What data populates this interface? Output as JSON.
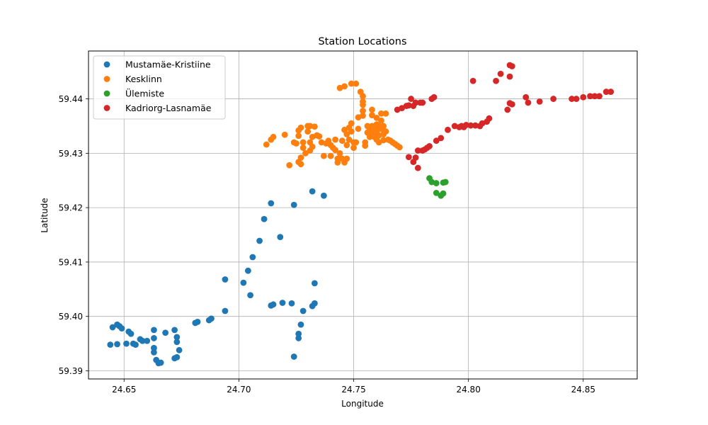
{
  "chart_data": {
    "type": "scatter",
    "title": "Station Locations",
    "xlabel": "Longitude",
    "ylabel": "Latitude",
    "xlim": [
      24.6345,
      24.8735
    ],
    "ylim": [
      59.3885,
      59.4488
    ],
    "xticks": [
      24.65,
      24.7,
      24.75,
      24.8,
      24.85
    ],
    "xtick_labels": [
      "24.65",
      "24.70",
      "24.75",
      "24.80",
      "24.85"
    ],
    "yticks": [
      59.39,
      59.4,
      59.41,
      59.42,
      59.43,
      59.44
    ],
    "ytick_labels": [
      "59.39",
      "59.40",
      "59.41",
      "59.42",
      "59.43",
      "59.44"
    ],
    "grid": true,
    "legend_position": "top-left",
    "series": [
      {
        "name": "Mustamäe-Kristiine",
        "color": "#1f77b4",
        "points": [
          [
            24.644,
            59.3948
          ],
          [
            24.645,
            59.398
          ],
          [
            24.647,
            59.3985
          ],
          [
            24.648,
            59.3982
          ],
          [
            24.649,
            59.3978
          ],
          [
            24.647,
            59.3949
          ],
          [
            24.651,
            59.395
          ],
          [
            24.652,
            59.3972
          ],
          [
            24.653,
            59.3968
          ],
          [
            24.654,
            59.395
          ],
          [
            24.655,
            59.3948
          ],
          [
            24.657,
            59.3958
          ],
          [
            24.658,
            59.3955
          ],
          [
            24.66,
            59.3955
          ],
          [
            24.663,
            59.3975
          ],
          [
            24.663,
            59.396
          ],
          [
            24.663,
            59.3942
          ],
          [
            24.663,
            59.3934
          ],
          [
            24.664,
            59.392
          ],
          [
            24.665,
            59.3914
          ],
          [
            24.666,
            59.3915
          ],
          [
            24.668,
            59.397
          ],
          [
            24.672,
            59.3975
          ],
          [
            24.672,
            59.3923
          ],
          [
            24.673,
            59.3925
          ],
          [
            24.673,
            59.3962
          ],
          [
            24.673,
            59.3953
          ],
          [
            24.674,
            59.3938
          ],
          [
            24.681,
            59.3988
          ],
          [
            24.682,
            59.399
          ],
          [
            24.687,
            59.3993
          ],
          [
            24.688,
            59.3996
          ],
          [
            24.694,
            59.4068
          ],
          [
            24.694,
            59.401
          ],
          [
            24.702,
            59.4062
          ],
          [
            24.704,
            59.4084
          ],
          [
            24.705,
            59.4039
          ],
          [
            24.706,
            59.4109
          ],
          [
            24.709,
            59.4139
          ],
          [
            24.711,
            59.4179
          ],
          [
            24.714,
            59.4208
          ],
          [
            24.714,
            59.402
          ],
          [
            24.715,
            59.4022
          ],
          [
            24.718,
            59.4146
          ],
          [
            24.719,
            59.4025
          ],
          [
            24.723,
            59.4024
          ],
          [
            24.724,
            59.4205
          ],
          [
            24.724,
            59.3926
          ],
          [
            24.726,
            59.396
          ],
          [
            24.726,
            59.3968
          ],
          [
            24.727,
            59.3985
          ],
          [
            24.728,
            59.401
          ],
          [
            24.732,
            59.423
          ],
          [
            24.732,
            59.4019
          ],
          [
            24.733,
            59.4024
          ],
          [
            24.733,
            59.4061
          ],
          [
            24.737,
            59.4222
          ]
        ]
      },
      {
        "name": "Kesklinn",
        "color": "#ff7f0e",
        "points": [
          [
            24.712,
            59.4316
          ],
          [
            24.714,
            59.4325
          ],
          [
            24.715,
            59.433
          ],
          [
            24.72,
            59.4334
          ],
          [
            24.722,
            59.4278
          ],
          [
            24.724,
            59.432
          ],
          [
            24.725,
            59.4318
          ],
          [
            24.726,
            59.4342
          ],
          [
            24.726,
            59.4332
          ],
          [
            24.726,
            59.4284
          ],
          [
            24.727,
            59.4347
          ],
          [
            24.727,
            59.4292
          ],
          [
            24.727,
            59.428
          ],
          [
            24.728,
            59.432
          ],
          [
            24.728,
            59.431
          ],
          [
            24.729,
            59.43
          ],
          [
            24.73,
            59.435
          ],
          [
            24.73,
            59.434
          ],
          [
            24.731,
            59.435
          ],
          [
            24.731,
            59.432
          ],
          [
            24.731,
            59.4305
          ],
          [
            24.732,
            59.433
          ],
          [
            24.732,
            59.4312
          ],
          [
            24.733,
            59.4349
          ],
          [
            24.734,
            59.4333
          ],
          [
            24.735,
            59.4331
          ],
          [
            24.736,
            59.432
          ],
          [
            24.737,
            59.4295
          ],
          [
            24.738,
            59.4318
          ],
          [
            24.739,
            59.4323
          ],
          [
            24.74,
            59.4315
          ],
          [
            24.74,
            59.4295
          ],
          [
            24.741,
            59.431
          ],
          [
            24.742,
            59.4325
          ],
          [
            24.742,
            59.4306
          ],
          [
            24.743,
            59.429
          ],
          [
            24.743,
            59.4283
          ],
          [
            24.744,
            59.442
          ],
          [
            24.744,
            59.43
          ],
          [
            24.745,
            59.4323
          ],
          [
            24.745,
            59.429
          ],
          [
            24.746,
            59.4343
          ],
          [
            24.746,
            59.4283
          ],
          [
            24.746,
            59.4423
          ],
          [
            24.747,
            59.4335
          ],
          [
            24.747,
            59.4315
          ],
          [
            24.747,
            59.429
          ],
          [
            24.748,
            59.4347
          ],
          [
            24.748,
            59.4325
          ],
          [
            24.749,
            59.4355
          ],
          [
            24.749,
            59.434
          ],
          [
            24.749,
            59.4428
          ],
          [
            24.75,
            59.432
          ],
          [
            24.75,
            59.431
          ],
          [
            24.751,
            59.4428
          ],
          [
            24.751,
            59.432
          ],
          [
            24.752,
            59.4345
          ],
          [
            24.752,
            59.4366
          ],
          [
            24.753,
            59.4413
          ],
          [
            24.754,
            59.4405
          ],
          [
            24.754,
            59.4395
          ],
          [
            24.754,
            59.4389
          ],
          [
            24.754,
            59.4378
          ],
          [
            24.754,
            59.4369
          ],
          [
            24.755,
            59.432
          ],
          [
            24.755,
            59.4314
          ],
          [
            24.756,
            59.435
          ],
          [
            24.756,
            59.4338
          ],
          [
            24.757,
            59.4345
          ],
          [
            24.757,
            59.433
          ],
          [
            24.758,
            59.437
          ],
          [
            24.758,
            59.438
          ],
          [
            24.758,
            59.435
          ],
          [
            24.758,
            59.4335
          ],
          [
            24.759,
            59.4343
          ],
          [
            24.759,
            59.433
          ],
          [
            24.76,
            59.4365
          ],
          [
            24.76,
            59.4353
          ],
          [
            24.76,
            59.434
          ],
          [
            24.76,
            59.4325
          ],
          [
            24.761,
            59.435
          ],
          [
            24.761,
            59.4333
          ],
          [
            24.761,
            59.432
          ],
          [
            24.762,
            59.4373
          ],
          [
            24.762,
            59.436
          ],
          [
            24.762,
            59.4345
          ],
          [
            24.763,
            59.4335
          ],
          [
            24.763,
            59.435
          ],
          [
            24.763,
            59.4324
          ],
          [
            24.764,
            59.4373
          ],
          [
            24.764,
            59.434
          ],
          [
            24.765,
            59.4325
          ],
          [
            24.766,
            59.4323
          ],
          [
            24.767,
            59.432
          ],
          [
            24.768,
            59.4317
          ],
          [
            24.769,
            59.4314
          ],
          [
            24.77,
            59.4311
          ]
        ]
      },
      {
        "name": "Ülemiste",
        "color": "#2ca02c",
        "points": [
          [
            24.783,
            59.4254
          ],
          [
            24.784,
            59.4247
          ],
          [
            24.786,
            59.4245
          ],
          [
            24.786,
            59.4227
          ],
          [
            24.788,
            59.4222
          ],
          [
            24.789,
            59.4226
          ],
          [
            24.789,
            59.4246
          ],
          [
            24.79,
            59.4247
          ]
        ]
      },
      {
        "name": "Kadriorg-Lasnamäe",
        "color": "#d62728",
        "points": [
          [
            24.769,
            59.438
          ],
          [
            24.771,
            59.4383
          ],
          [
            24.773,
            59.4387
          ],
          [
            24.774,
            59.4388
          ],
          [
            24.775,
            59.44
          ],
          [
            24.776,
            59.4387
          ],
          [
            24.777,
            59.4393
          ],
          [
            24.779,
            59.4393
          ],
          [
            24.78,
            59.4393
          ],
          [
            24.784,
            59.44
          ],
          [
            24.785,
            59.4403
          ],
          [
            24.774,
            59.4293
          ],
          [
            24.776,
            59.4284
          ],
          [
            24.777,
            59.4292
          ],
          [
            24.778,
            59.4273
          ],
          [
            24.778,
            59.4305
          ],
          [
            24.78,
            59.4305
          ],
          [
            24.781,
            59.4307
          ],
          [
            24.782,
            59.431
          ],
          [
            24.783,
            59.4313
          ],
          [
            24.786,
            59.4323
          ],
          [
            24.788,
            59.4328
          ],
          [
            24.791,
            59.4343
          ],
          [
            24.794,
            59.435
          ],
          [
            24.796,
            59.4348
          ],
          [
            24.797,
            59.435
          ],
          [
            24.798,
            59.4348
          ],
          [
            24.799,
            59.4352
          ],
          [
            24.801,
            59.4351
          ],
          [
            24.803,
            59.4351
          ],
          [
            24.805,
            59.435
          ],
          [
            24.806,
            59.4355
          ],
          [
            24.808,
            59.4358
          ],
          [
            24.809,
            59.4364
          ],
          [
            24.802,
            59.4433
          ],
          [
            24.812,
            59.4433
          ],
          [
            24.814,
            59.4446
          ],
          [
            24.817,
            59.438
          ],
          [
            24.818,
            59.4392
          ],
          [
            24.819,
            59.439
          ],
          [
            24.818,
            59.4462
          ],
          [
            24.819,
            59.446
          ],
          [
            24.818,
            59.4441
          ],
          [
            24.825,
            59.4403
          ],
          [
            24.826,
            59.4393
          ],
          [
            24.831,
            59.4395
          ],
          [
            24.837,
            59.44
          ],
          [
            24.845,
            59.44
          ],
          [
            24.847,
            59.44
          ],
          [
            24.85,
            59.4403
          ],
          [
            24.853,
            59.4405
          ],
          [
            24.855,
            59.4405
          ],
          [
            24.857,
            59.4405
          ],
          [
            24.86,
            59.4413
          ],
          [
            24.862,
            59.4413
          ]
        ]
      }
    ]
  }
}
